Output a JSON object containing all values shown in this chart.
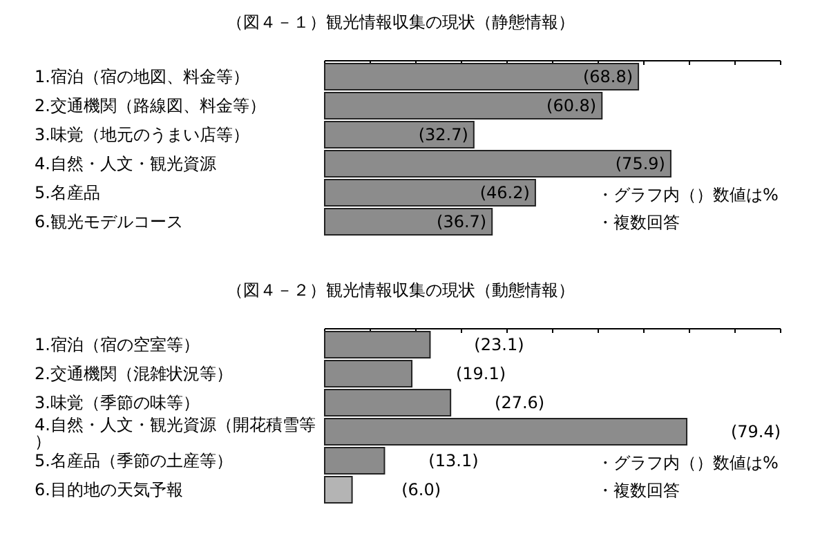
{
  "chart_data": [
    {
      "type": "bar",
      "orientation": "horizontal",
      "title": "（図４－１）観光情報収集の現状（静態情報）",
      "categories": [
        "1.宿泊（宿の地図、料金等）",
        "2.交通機関（路線図、料金等）",
        "3.味覚（地元のうまい店等）",
        "4.自然・人文・観光資源",
        "5.名産品",
        "6.観光モデルコース"
      ],
      "values": [
        68.8,
        60.8,
        32.7,
        75.9,
        46.2,
        36.7
      ],
      "value_labels": [
        "(68.8)",
        "(60.8)",
        "(32.7)",
        "(75.9)",
        "(46.2)",
        "(36.7)"
      ],
      "colors": [
        "#8c8c8c",
        "#8c8c8c",
        "#8c8c8c",
        "#8c8c8c",
        "#8c8c8c",
        "#8c8c8c"
      ],
      "xlim": [
        0,
        100
      ],
      "xticks": [
        {
          "value": 0,
          "label": null
        },
        {
          "value": 10,
          "label": null
        },
        {
          "value": 20,
          "label": null
        },
        {
          "value": 30,
          "label": null
        },
        {
          "value": 40,
          "label": null
        },
        {
          "value": 50,
          "label": null
        },
        {
          "value": 60,
          "label": null
        },
        {
          "value": 70,
          "label": null
        },
        {
          "value": 80,
          "label": null
        },
        {
          "value": 90,
          "label": null
        },
        {
          "value": 100,
          "label": null
        }
      ],
      "tick_labels": "y",
      "annotations": [
        "・グラフ内（）数値は%",
        "・複数回答"
      ]
    },
    {
      "type": "bar",
      "orientation": "horizontal",
      "title": "（図４－２）観光情報収集の現状（動態情報）",
      "categories": [
        "1.宿泊（宿の空室等）",
        "2.交通機関（混雑状況等）",
        "3.味覚（季節の味等）",
        "4.自然・人文・観光資源（開花積雪等）",
        "5.名産品（季節の土産等）",
        "6.目的地の天気予報"
      ],
      "values": [
        23.1,
        19.1,
        27.6,
        79.4,
        13.1,
        6.0
      ],
      "value_labels": [
        "(23.1)",
        "(19.1)",
        "(27.6)",
        "(79.4)",
        "(13.1)",
        "(6.0)"
      ],
      "colors": [
        "#8c8c8c",
        "#8c8c8c",
        "#8c8c8c",
        "#8c8c8c",
        "#8c8c8c",
        "#b4b4b4"
      ],
      "xlim": [
        0,
        100
      ],
      "xticks": [
        {
          "value": 0,
          "label": null
        },
        {
          "value": 10,
          "label": null
        },
        {
          "value": 20,
          "label": null
        },
        {
          "value": 30,
          "label": null
        },
        {
          "value": 40,
          "label": null
        },
        {
          "value": 50,
          "label": null
        },
        {
          "value": 60,
          "label": null
        },
        {
          "value": 70,
          "label": null
        },
        {
          "value": 80,
          "label": null
        },
        {
          "value": 90,
          "label": null
        },
        {
          "value": 100,
          "label": null
        }
      ],
      "tick_labels": "y",
      "annotations": [
        "・グラフ内（）数値は%",
        "・複数回答"
      ]
    }
  ]
}
